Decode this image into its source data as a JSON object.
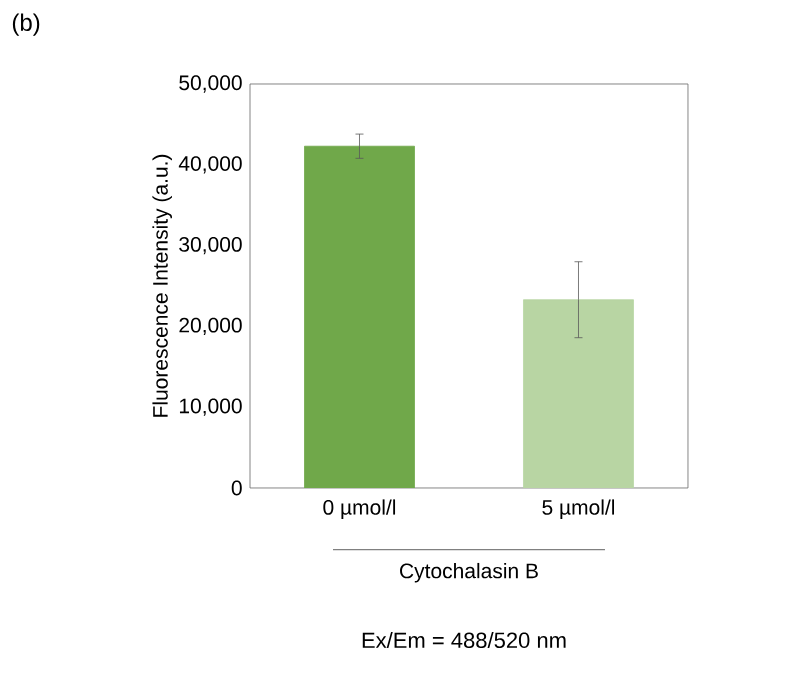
{
  "chart_data": {
    "type": "bar",
    "categories": [
      "0 µmol/l",
      "5 µmol/l"
    ],
    "values": [
      42300,
      23300
    ],
    "errors": [
      1500,
      4700
    ],
    "colors": [
      "#70a84a",
      "#b8d5a3"
    ],
    "xlabel": "Cytochalasin B",
    "ylabel": "Fluorescence Intensity (a.u.)",
    "ylim": [
      0,
      50000
    ],
    "yticks": [
      0,
      {
        "value": 10000,
        "label": "10,000"
      },
      {
        "value": 20000,
        "label": "20,000"
      },
      {
        "value": 30000,
        "label": "30,000"
      },
      {
        "value": 40000,
        "label": "40,000"
      },
      {
        "value": 50000,
        "label": "50,000"
      }
    ],
    "annotations": [
      "(b)",
      "Ex/Em = 488/520 nm"
    ],
    "grid": false
  }
}
